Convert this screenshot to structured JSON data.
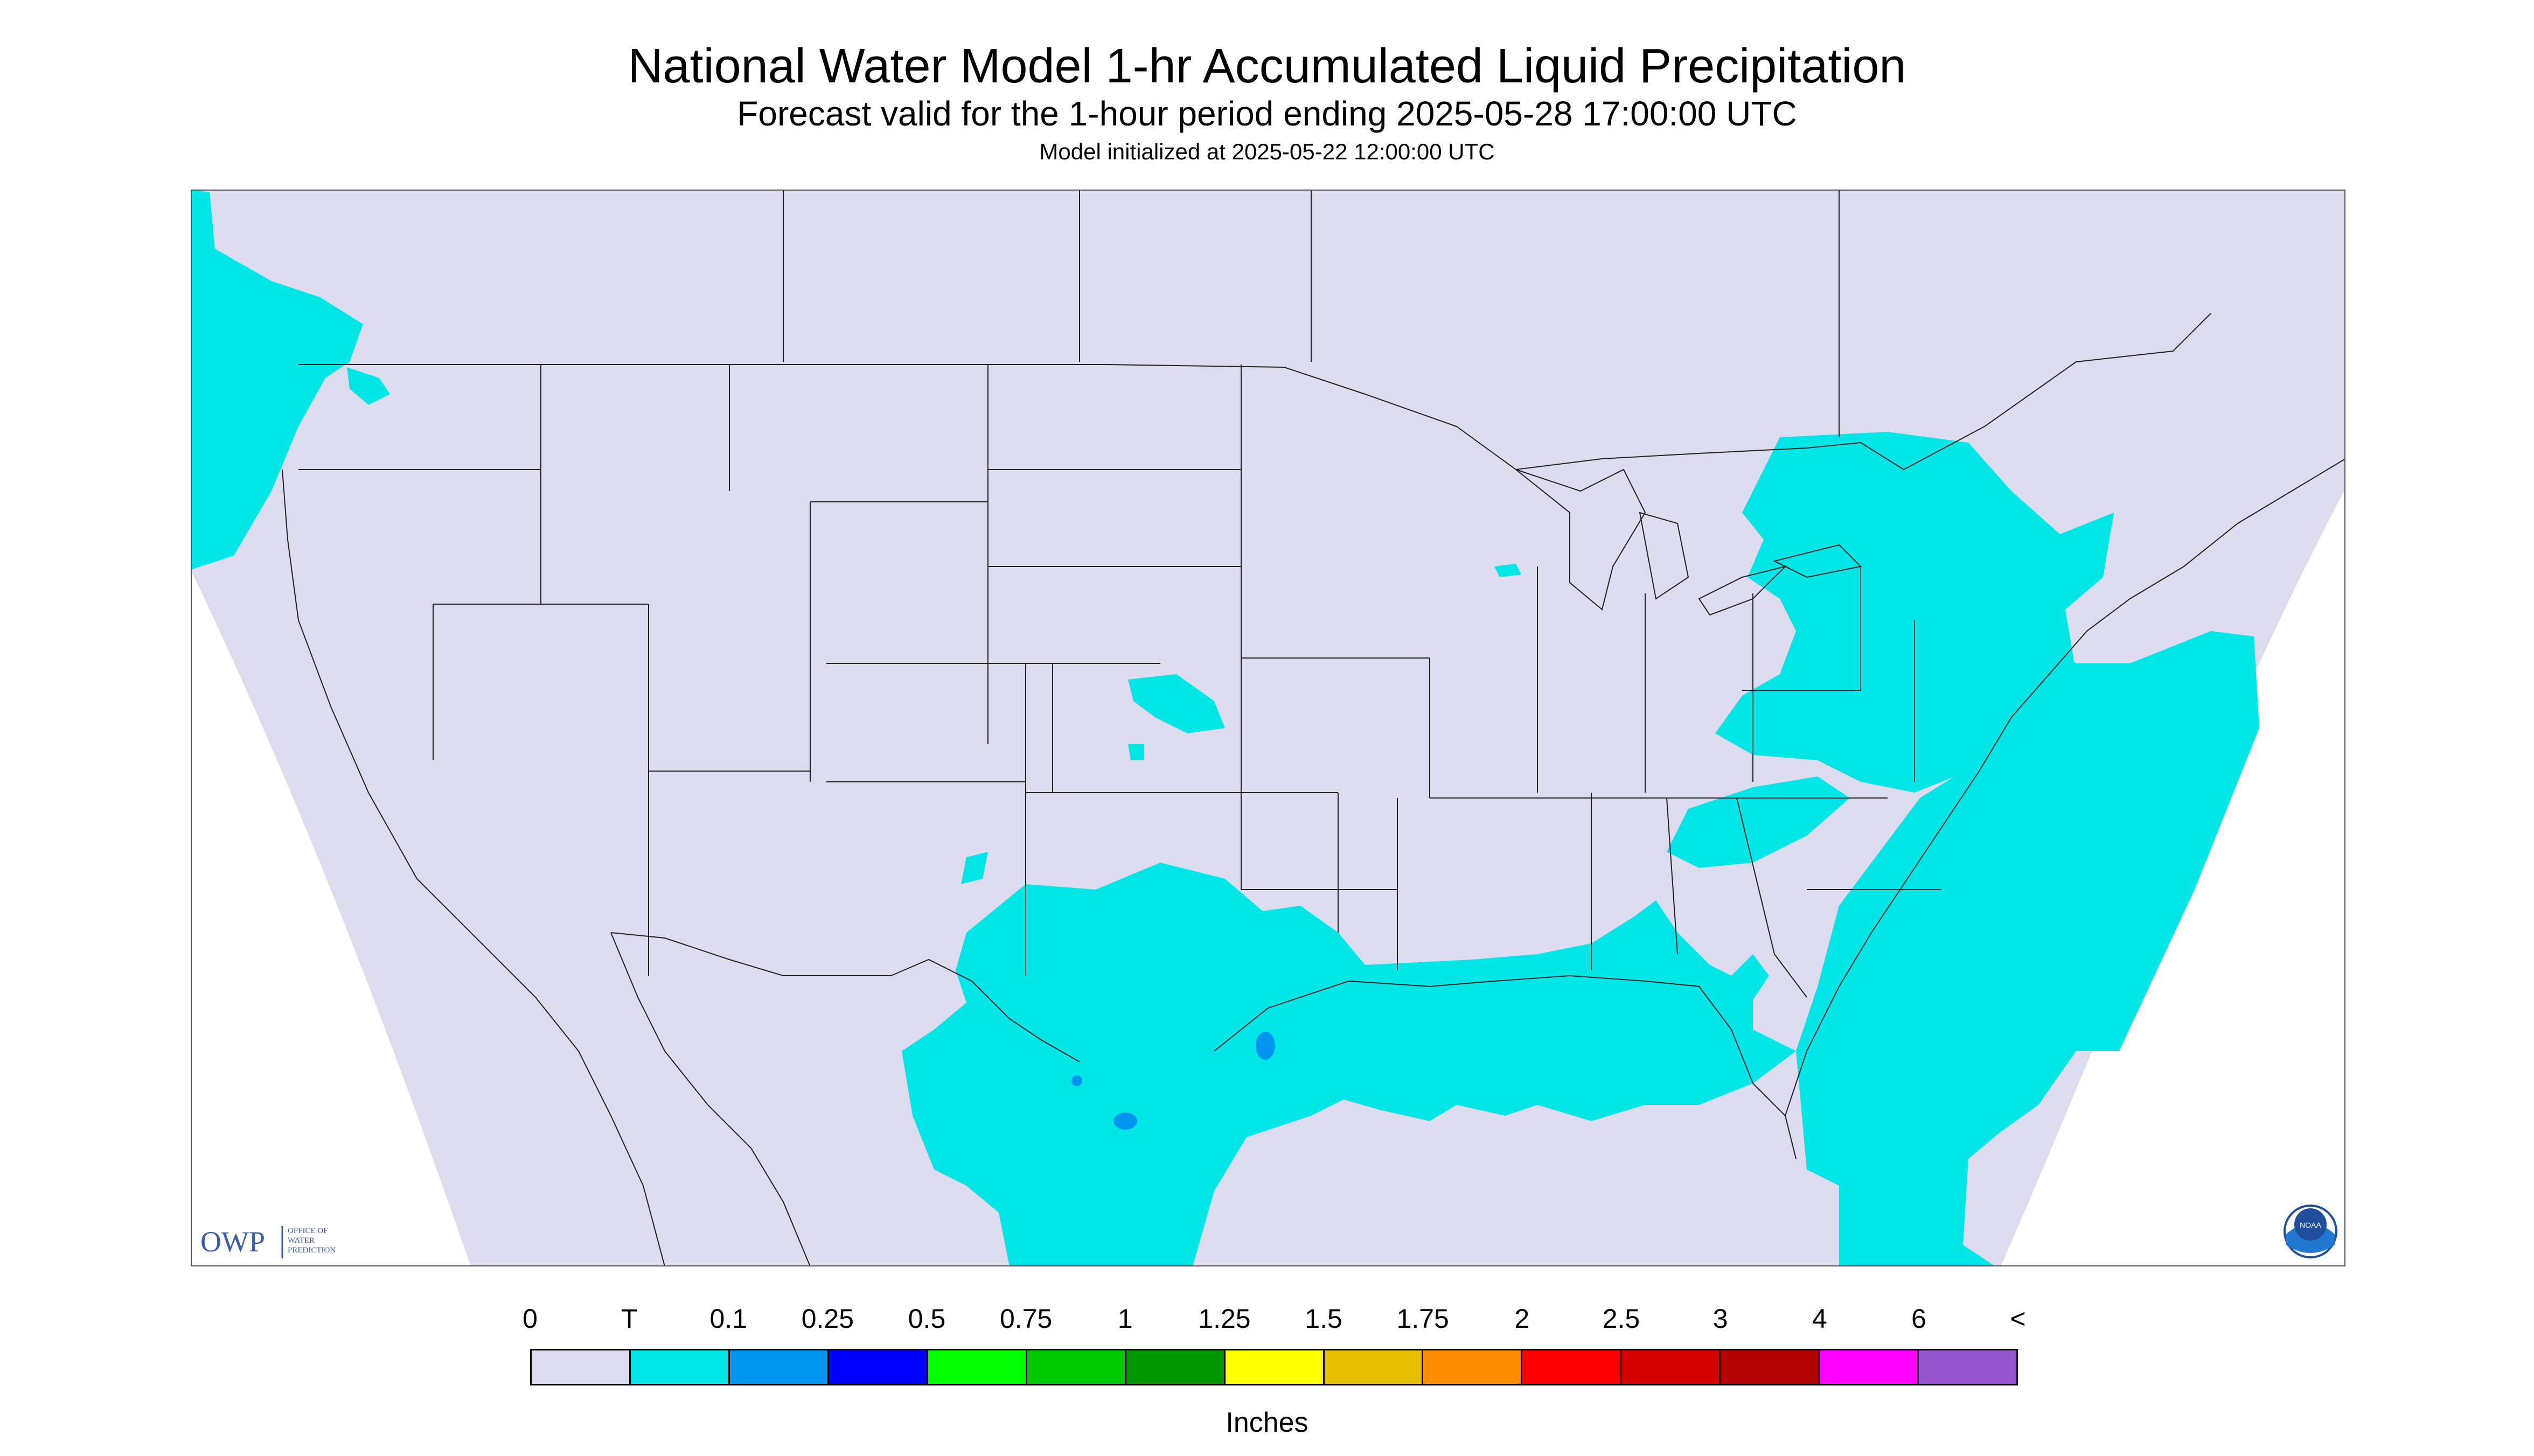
{
  "title": "National Water Model 1-hr Accumulated Liquid Precipitation",
  "subtitle": "Forecast valid for the 1-hour period ending 2025-05-28 17:00:00 UTC",
  "init_line": "Model initialized at 2025-05-22 12:00:00 UTC",
  "logo": {
    "owp_abbrev": "OWP",
    "owp_lines": [
      "OFFICE OF",
      "WATER",
      "PREDICTION"
    ],
    "noaa_text": "NOAA"
  },
  "colors": {
    "background_zero": "#dcdcee",
    "trace": "#00e6e6",
    "blue_0_1": "#0096f0"
  },
  "legend": {
    "units": "Inches",
    "labels": [
      "0",
      "T",
      "0.1",
      "0.25",
      "0.5",
      "0.75",
      "1",
      "1.25",
      "1.5",
      "1.75",
      "2",
      "2.5",
      "3",
      "4",
      "6",
      "<"
    ],
    "colors": [
      "#dcdcee",
      "#00e6e6",
      "#0096f0",
      "#0000ff",
      "#00ff00",
      "#00c800",
      "#009600",
      "#ffff00",
      "#e6c000",
      "#ff8c00",
      "#ff0000",
      "#d40000",
      "#b40000",
      "#ff00ff",
      "#9955cc"
    ]
  }
}
